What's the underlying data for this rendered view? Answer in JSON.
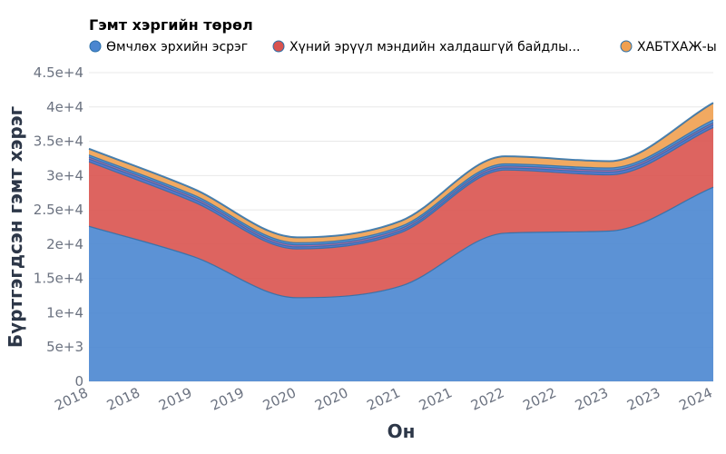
{
  "chart_data": {
    "type": "area",
    "stacked": true,
    "xlabel": "Он",
    "ylabel": "Бүртгэгдсэн гэмт хэрэг",
    "x_tick_labels": [
      "2018",
      "2018",
      "2019",
      "2019",
      "2020",
      "2020",
      "2021",
      "2021",
      "2022",
      "2022",
      "2023",
      "2023",
      "2024"
    ],
    "years": [
      2018,
      2019,
      2020,
      2021,
      2022,
      2023,
      2024
    ],
    "ylim": [
      0,
      45000
    ],
    "y_ticks": [
      {
        "value": 0,
        "label": "0"
      },
      {
        "value": 5000,
        "label": "5e+3"
      },
      {
        "value": 10000,
        "label": "1e+4"
      },
      {
        "value": 15000,
        "label": "1.5e+4"
      },
      {
        "value": 20000,
        "label": "2e+4"
      },
      {
        "value": 25000,
        "label": "2.5e+4"
      },
      {
        "value": 30000,
        "label": "3e+4"
      },
      {
        "value": 35000,
        "label": "3.5e+4"
      },
      {
        "value": 40000,
        "label": "4e+4"
      },
      {
        "value": 45000,
        "label": "4.5e+4"
      }
    ],
    "grid": true,
    "legend": {
      "title": "Гэмт хэргийн төрөл",
      "position": "top-left"
    },
    "series": [
      {
        "name": "Өмчлөх эрхийн эсрэг",
        "color": "#4a86d0",
        "legend": true,
        "values": [
          22600,
          18200,
          12200,
          13900,
          21600,
          21900,
          28300
        ]
      },
      {
        "name": "Хүний эрүүл мэндийн халдашгүй байдлы...",
        "color": "#d9534f",
        "legend": true,
        "values": [
          9400,
          8000,
          7100,
          7800,
          9200,
          8200,
          8700
        ]
      },
      {
        "name": "",
        "color": "#4a67c8",
        "legend": false,
        "values": [
          400,
          400,
          300,
          300,
          300,
          400,
          400
        ]
      },
      {
        "name": "",
        "color": "#a05a9c",
        "legend": false,
        "values": [
          300,
          300,
          300,
          300,
          300,
          300,
          300
        ]
      },
      {
        "name": "",
        "color": "#4a86d0",
        "legend": false,
        "values": [
          300,
          300,
          300,
          300,
          300,
          300,
          400
        ]
      },
      {
        "name": "ХАБТХАЖ-ы",
        "color": "#f0a050",
        "legend": true,
        "values": [
          900,
          900,
          800,
          800,
          1100,
          1000,
          2500
        ]
      }
    ],
    "total_line_color": "#2a6fa8"
  }
}
